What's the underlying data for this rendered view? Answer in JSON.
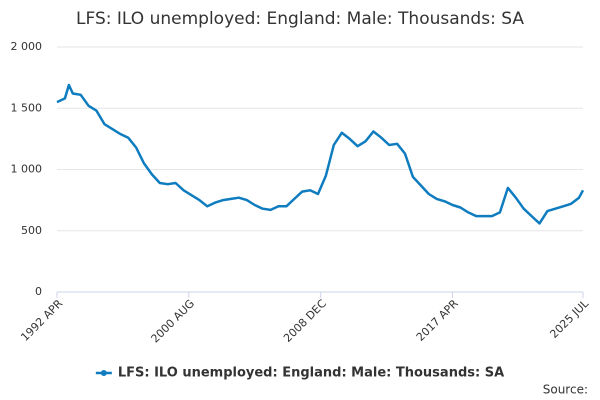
{
  "chart_data": {
    "type": "line",
    "title": "LFS: ILO unemployed: England: Male: Thousands: SA",
    "source": "Source:",
    "x": [
      "1992 APR",
      "1992 OCT",
      "1993 JAN",
      "1993 APR",
      "1993 OCT",
      "1994 APR",
      "1994 OCT",
      "1995 APR",
      "1995 OCT",
      "1996 APR",
      "1996 OCT",
      "1997 APR",
      "1997 OCT",
      "1998 APR",
      "1998 OCT",
      "1999 APR",
      "1999 OCT",
      "2000 APR",
      "2000 OCT",
      "2001 APR",
      "2001 OCT",
      "2002 APR",
      "2002 OCT",
      "2003 APR",
      "2003 OCT",
      "2004 APR",
      "2004 OCT",
      "2005 APR",
      "2005 OCT",
      "2006 APR",
      "2006 OCT",
      "2007 APR",
      "2007 OCT",
      "2008 APR",
      "2008 OCT",
      "2009 APR",
      "2009 OCT",
      "2010 APR",
      "2010 OCT",
      "2011 APR",
      "2011 OCT",
      "2012 APR",
      "2012 OCT",
      "2013 APR",
      "2013 OCT",
      "2014 APR",
      "2014 OCT",
      "2015 APR",
      "2015 OCT",
      "2016 APR",
      "2016 OCT",
      "2017 APR",
      "2017 OCT",
      "2018 APR",
      "2018 OCT",
      "2019 APR",
      "2019 OCT",
      "2020 APR",
      "2020 OCT",
      "2021 APR",
      "2021 OCT",
      "2022 APR",
      "2022 OCT",
      "2023 APR",
      "2023 OCT",
      "2024 APR",
      "2024 OCT",
      "2025 APR",
      "2025 JUL"
    ],
    "series": [
      {
        "name": "LFS: ILO unemployed: England: Male: Thousands: SA",
        "color": "#0e7cbf",
        "values": [
          1550,
          1580,
          1690,
          1620,
          1610,
          1520,
          1480,
          1370,
          1330,
          1290,
          1260,
          1180,
          1050,
          960,
          890,
          880,
          890,
          830,
          790,
          750,
          700,
          730,
          750,
          760,
          770,
          750,
          710,
          680,
          670,
          700,
          700,
          760,
          820,
          830,
          800,
          950,
          1200,
          1300,
          1250,
          1190,
          1230,
          1310,
          1260,
          1200,
          1210,
          1130,
          940,
          870,
          800,
          760,
          740,
          710,
          690,
          650,
          620,
          620,
          620,
          650,
          850,
          770,
          680,
          620,
          560,
          660,
          680,
          700,
          720,
          770,
          830
        ]
      }
    ],
    "xlim": [
      "1992 APR",
      "2025 JUL"
    ],
    "xticks": [
      "1992 APR",
      "2000 AUG",
      "2008 DEC",
      "2017 APR",
      "2025 JUL"
    ],
    "ylim": [
      0,
      2000
    ],
    "yticks": [
      0,
      500,
      {
        "value": 1000,
        "label": "1 000"
      },
      {
        "value": 1500,
        "label": "1 500"
      },
      {
        "value": 2000,
        "label": "2 000"
      }
    ],
    "grid": true
  }
}
